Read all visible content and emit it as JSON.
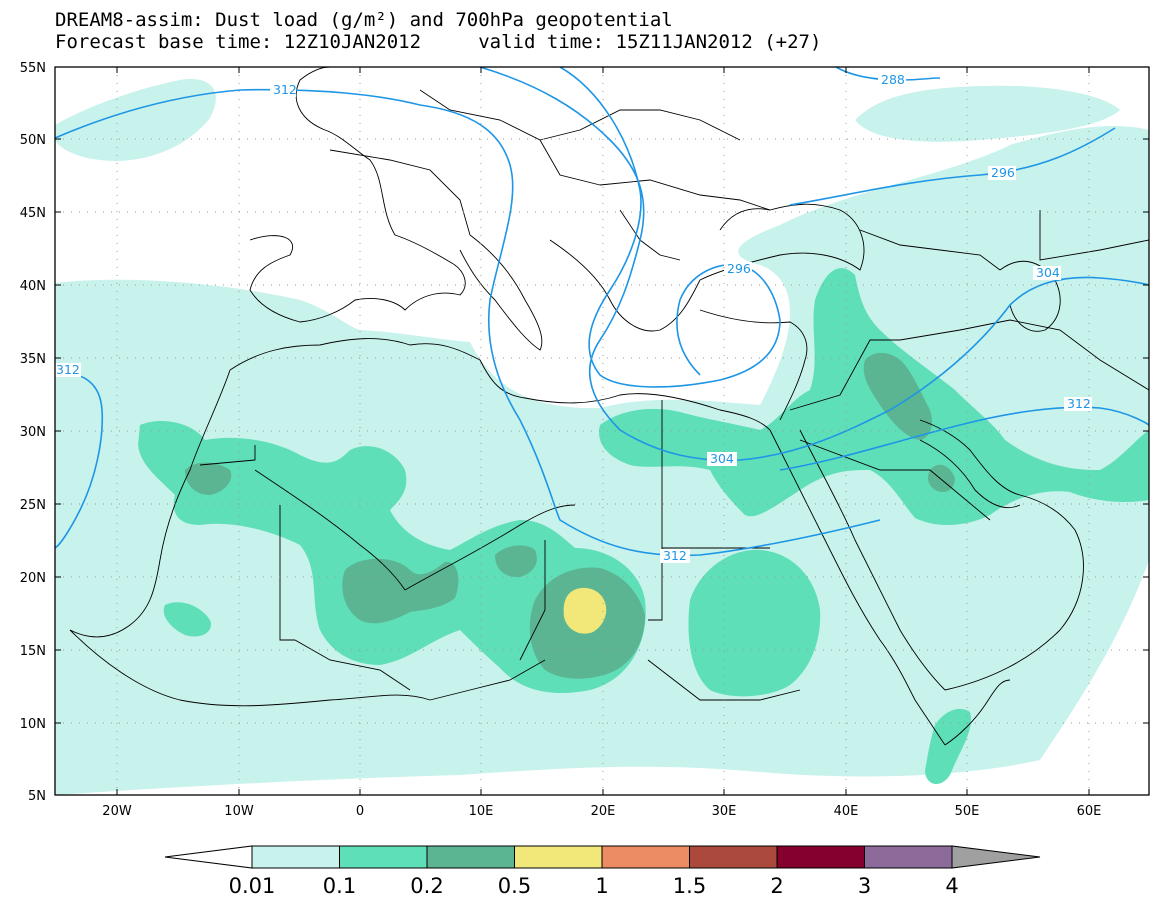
{
  "header": {
    "title": "DREAM8-assim: Dust load (g/m²) and 700hPa geopotential",
    "subtitle": "Forecast base time: 12Z10JAN2012     valid time: 15Z11JAN2012 (+27)"
  },
  "map": {
    "lat_labels": [
      "55N",
      "50N",
      "45N",
      "40N",
      "35N",
      "30N",
      "25N",
      "20N",
      "15N",
      "10N",
      "5N"
    ],
    "lon_labels": [
      "20W",
      "10W",
      "0",
      "10E",
      "20E",
      "30E",
      "40E",
      "50E",
      "60E"
    ],
    "contour_labels": [
      "312",
      "288",
      "296",
      "304",
      "296",
      "304",
      "312",
      "304",
      "312",
      "312"
    ]
  },
  "legend": {
    "labels": [
      "0.01",
      "0.1",
      "0.2",
      "0.5",
      "1",
      "1.5",
      "2",
      "3",
      "4"
    ],
    "colors": [
      "#c8f2ec",
      "#5fdfb8",
      "#5bb593",
      "#f2e87a",
      "#eb8c64",
      "#ab4a3c",
      "#85002e",
      "#8c6b9b"
    ],
    "under_color": "#ffffff",
    "over_color": "#a0a0a0"
  },
  "colors": {
    "contour": "#1e96e6",
    "land_outline": "#000000",
    "grid": "#9a9a9a"
  }
}
